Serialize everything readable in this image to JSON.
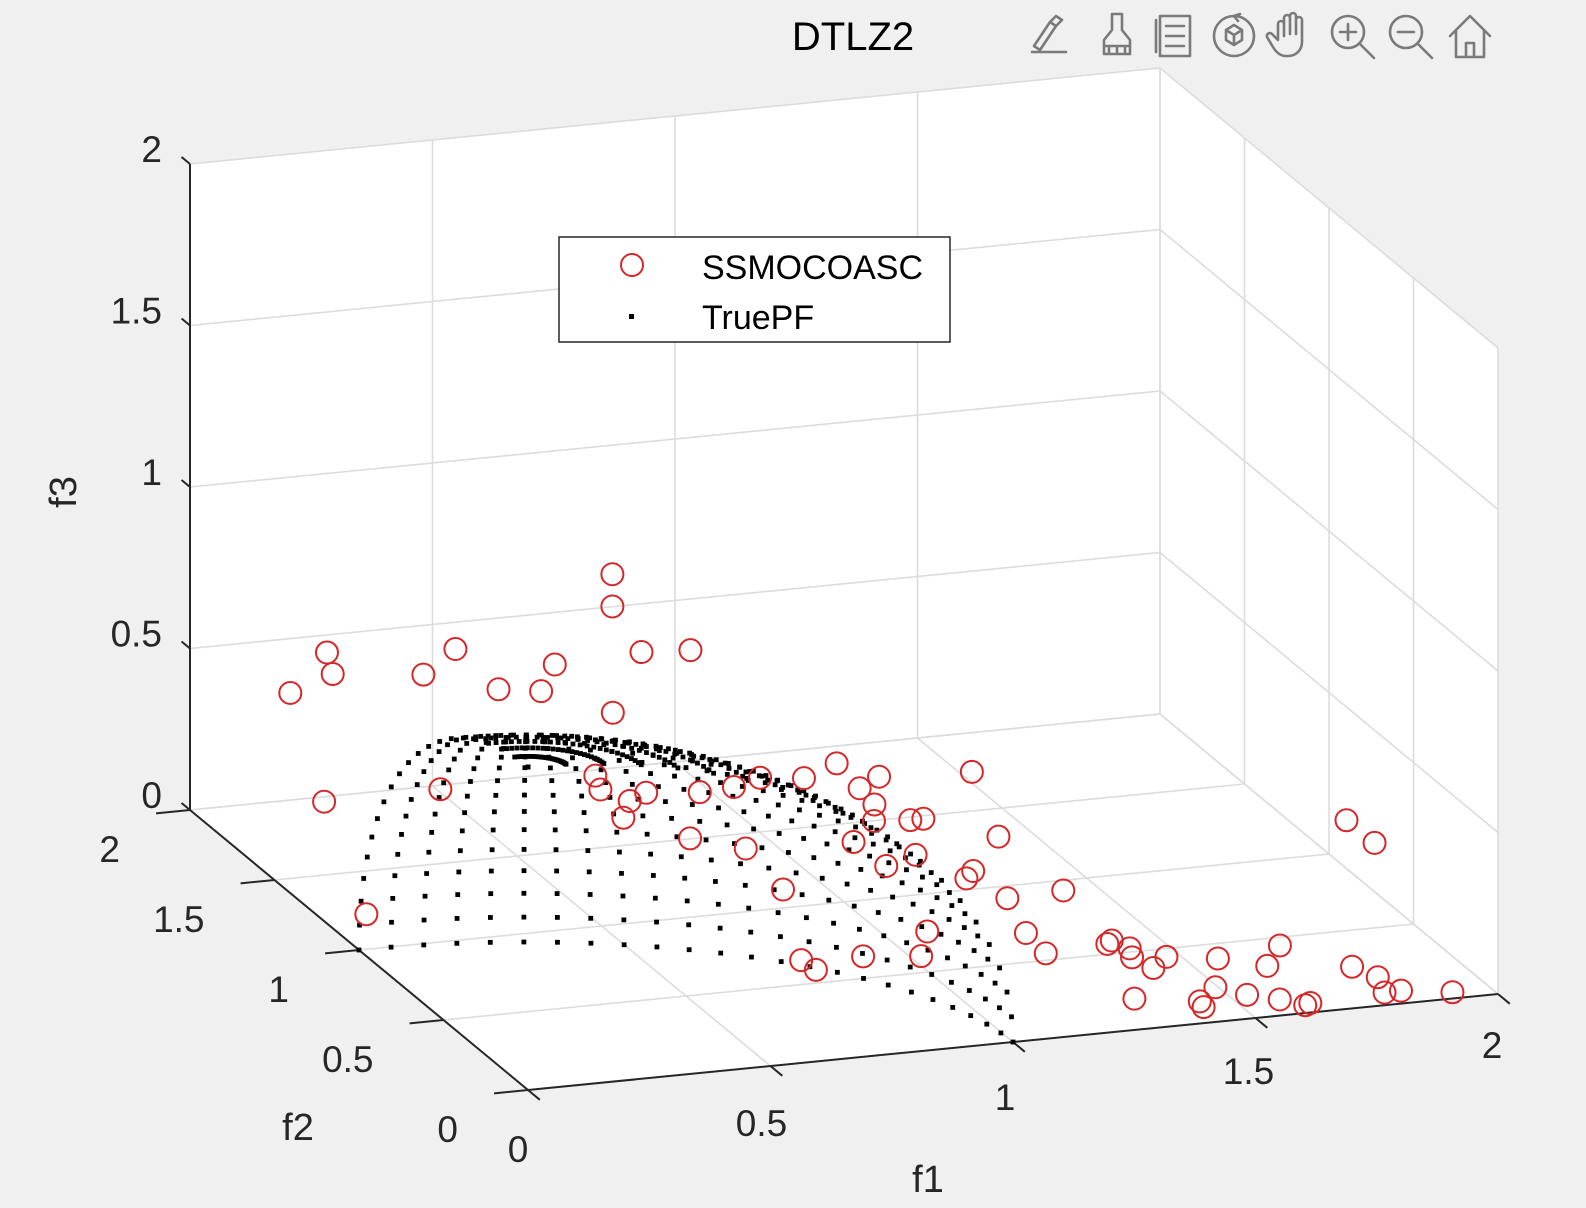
{
  "toolbar": {
    "icons": [
      "edit-plot-icon",
      "brush-icon",
      "legend-icon",
      "rotate-3d-icon",
      "pan-hand-icon",
      "zoom-in-icon",
      "zoom-out-icon",
      "home-icon"
    ]
  },
  "colors": {
    "ssmocoasc": "#d62728",
    "truepf": "#000000",
    "grid": "#dcdcdc",
    "axes": "#262626"
  },
  "chart_data": {
    "type": "scatter",
    "projection": "3d",
    "title": "DTLZ2",
    "xlabel": "f1",
    "ylabel": "f2",
    "zlabel": "f3",
    "xlim": [
      0,
      2
    ],
    "ylim": [
      0,
      2
    ],
    "zlim": [
      0,
      2
    ],
    "xticks": [
      "0",
      "0.5",
      "1",
      "1.5",
      "2"
    ],
    "yticks": [
      "0",
      "0.5",
      "1",
      "1.5",
      "2"
    ],
    "zticks": [
      "0",
      "0.5",
      "1",
      "1.5",
      "2"
    ],
    "grid": true,
    "legend": {
      "position": "top-center",
      "entries": [
        "SSMOCOASC",
        "TruePF"
      ]
    },
    "series": [
      {
        "name": "SSMOCOASC",
        "marker": "circle",
        "points": [
          [
            0.15,
            1.62,
            0.63
          ],
          [
            0.05,
            1.55,
            0.55
          ],
          [
            0.12,
            1.5,
            0.62
          ],
          [
            0.3,
            1.48,
            0.6
          ],
          [
            0.38,
            1.52,
            0.65
          ],
          [
            0.42,
            1.38,
            0.58
          ],
          [
            0.55,
            1.42,
            0.62
          ],
          [
            0.48,
            1.3,
            0.6
          ],
          [
            0.62,
            1.28,
            0.95
          ],
          [
            0.62,
            1.28,
            0.85
          ],
          [
            0.68,
            1.28,
            0.7
          ],
          [
            0.76,
            1.22,
            0.72
          ],
          [
            0.6,
            1.22,
            0.55
          ],
          [
            0.55,
            1.18,
            0.38
          ],
          [
            0.55,
            1.15,
            0.35
          ],
          [
            0.6,
            1.12,
            0.32
          ],
          [
            0.62,
            1.08,
            0.36
          ],
          [
            0.58,
            1.1,
            0.28
          ],
          [
            0.72,
            1.05,
            0.36
          ],
          [
            0.78,
            1.02,
            0.38
          ],
          [
            0.82,
            0.98,
            0.42
          ],
          [
            0.9,
            0.95,
            0.42
          ],
          [
            0.7,
            1.05,
            0.22
          ],
          [
            0.78,
            0.95,
            0.22
          ],
          [
            0.05,
            1.35,
            0.3
          ],
          [
            0.05,
            1.1,
            0.06
          ],
          [
            0.95,
            0.9,
            0.48
          ],
          [
            0.98,
            0.85,
            0.42
          ],
          [
            1.0,
            0.82,
            0.38
          ],
          [
            1.02,
            0.85,
            0.45
          ],
          [
            1.06,
            0.78,
            0.34
          ],
          [
            1.08,
            0.76,
            0.35
          ],
          [
            1.18,
            0.76,
            0.48
          ],
          [
            1.2,
            0.66,
            0.32
          ],
          [
            0.95,
            0.8,
            0.28
          ],
          [
            1.0,
            0.75,
            0.22
          ],
          [
            1.05,
            0.72,
            0.26
          ],
          [
            1.12,
            0.62,
            0.22
          ],
          [
            1.12,
            0.58,
            0.26
          ],
          [
            1.18,
            0.55,
            0.18
          ],
          [
            1.25,
            0.42,
            0.25
          ],
          [
            0.9,
            0.6,
            0.02
          ],
          [
            0.72,
            0.45,
            0.1
          ],
          [
            0.74,
            0.42,
            0.08
          ],
          [
            0.98,
            0.45,
            0.15
          ],
          [
            0.95,
            0.4,
            0.1
          ],
          [
            1.18,
            0.44,
            0.12
          ],
          [
            1.2,
            0.38,
            0.08
          ],
          [
            1.35,
            0.42,
            0.08
          ],
          [
            1.38,
            0.4,
            0.06
          ],
          [
            1.32,
            0.36,
            0.1
          ],
          [
            1.35,
            0.3,
            0.08
          ],
          [
            1.38,
            0.26,
            0.06
          ],
          [
            1.4,
            0.24,
            0.1
          ],
          [
            1.52,
            0.28,
            0.06
          ],
          [
            1.32,
            0.2,
            0.0
          ],
          [
            1.48,
            0.18,
            0.02
          ],
          [
            1.58,
            0.16,
            0.08
          ],
          [
            1.62,
            0.2,
            0.12
          ],
          [
            1.42,
            0.1,
            0.02
          ],
          [
            1.62,
            0.05,
            0.0
          ],
          [
            1.5,
            0.05,
            0.05
          ],
          [
            1.62,
            0.02,
            0.02
          ],
          [
            1.72,
            0.06,
            0.1
          ],
          [
            1.78,
            0.08,
            0.05
          ],
          [
            1.78,
            0.04,
            0.02
          ],
          [
            1.8,
            0.0,
            0.04
          ],
          [
            1.92,
            0.04,
            0.0
          ],
          [
            1.4,
            0.02,
            0.04
          ],
          [
            1.55,
            0.0,
            0.05
          ],
          [
            1.82,
            0.38,
            0.4
          ],
          [
            1.85,
            0.3,
            0.36
          ],
          [
            1.02,
            0.88,
            0.3
          ],
          [
            0.7,
            0.5,
            0.3
          ],
          [
            0.22,
            1.15,
            0.4
          ]
        ]
      },
      {
        "name": "TruePF",
        "marker": "point",
        "surface": "unit-sphere-octant",
        "n_meridians": 25,
        "n_parallels": 21
      }
    ]
  }
}
